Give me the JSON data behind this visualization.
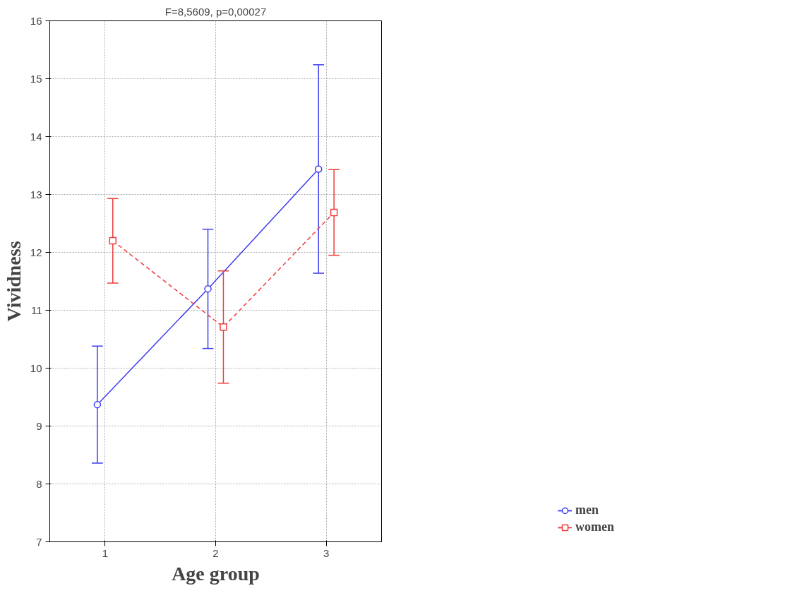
{
  "chart_data": {
    "type": "line",
    "title": "F=8,5609, p=0,00027",
    "xlabel": "Age group",
    "ylabel": "Vividness",
    "xlim": [
      0.5,
      3.5
    ],
    "xticks": [
      1,
      2,
      3
    ],
    "ylim": [
      7,
      16
    ],
    "yticks": [
      7,
      8,
      9,
      10,
      11,
      12,
      13,
      14,
      15,
      16
    ],
    "grid": true,
    "legend": "bottom right",
    "series": [
      {
        "name": "men",
        "color": "#3c3cf0",
        "x": [
          0.93,
          1.93,
          2.93
        ],
        "values": [
          9.37,
          11.37,
          13.44
        ],
        "errors": [
          1.01,
          1.03,
          1.8
        ],
        "marker": "circle",
        "line_style": "solid"
      },
      {
        "name": "women",
        "color": "#f03c3c",
        "x": [
          1.07,
          2.07,
          3.07
        ],
        "values": [
          12.2,
          10.71,
          12.69
        ],
        "errors": [
          0.73,
          0.97,
          0.74
        ],
        "marker": "square",
        "line_style": "dashed"
      }
    ]
  }
}
